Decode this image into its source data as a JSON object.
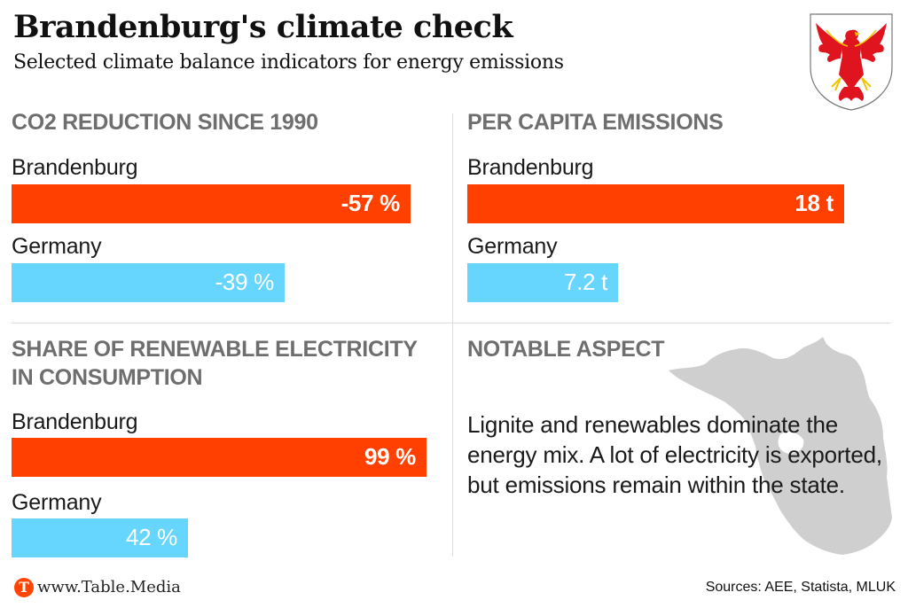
{
  "header": {
    "title": "Brandenburg's climate check",
    "subtitle": "Selected climate balance indicators for energy emissions"
  },
  "colors": {
    "brandenburg": "#ff4000",
    "germany": "#66d6ff",
    "section_title": "#6e6e6e",
    "map": "#cfcfcf",
    "logo": "#ff4500"
  },
  "chart_data": [
    {
      "type": "bar",
      "title": "CO2 REDUCTION SINCE 1990",
      "categories": [
        "Brandenburg",
        "Germany"
      ],
      "values": [
        -57,
        -39
      ],
      "labels": [
        "-57 %",
        "-39 %"
      ],
      "unit": "%"
    },
    {
      "type": "bar",
      "title": "PER CAPITA EMISSIONS",
      "categories": [
        "Brandenburg",
        "Germany"
      ],
      "values": [
        18,
        7.2
      ],
      "labels": [
        "18 t",
        "7.2 t"
      ],
      "unit": "t"
    },
    {
      "type": "bar",
      "title": "SHARE OF RENEWABLE ELECTRICITY IN CONSUMPTION",
      "title_lines": [
        "SHARE OF RENEWABLE ELECTRICITY",
        "IN CONSUMPTION"
      ],
      "categories": [
        "Brandenburg",
        "Germany"
      ],
      "values": [
        99,
        42
      ],
      "labels": [
        "99 %",
        "42 %"
      ],
      "unit": "%"
    }
  ],
  "notable": {
    "title": "NOTABLE ASPECT",
    "text": "Lignite and renewables dominate the energy mix. A lot of electricity is exported, but emissions remain within the state."
  },
  "footer": {
    "logo_letter": "T",
    "url": "www.Table.Media",
    "sources": "Sources: AEE, Statista, MLUK"
  }
}
